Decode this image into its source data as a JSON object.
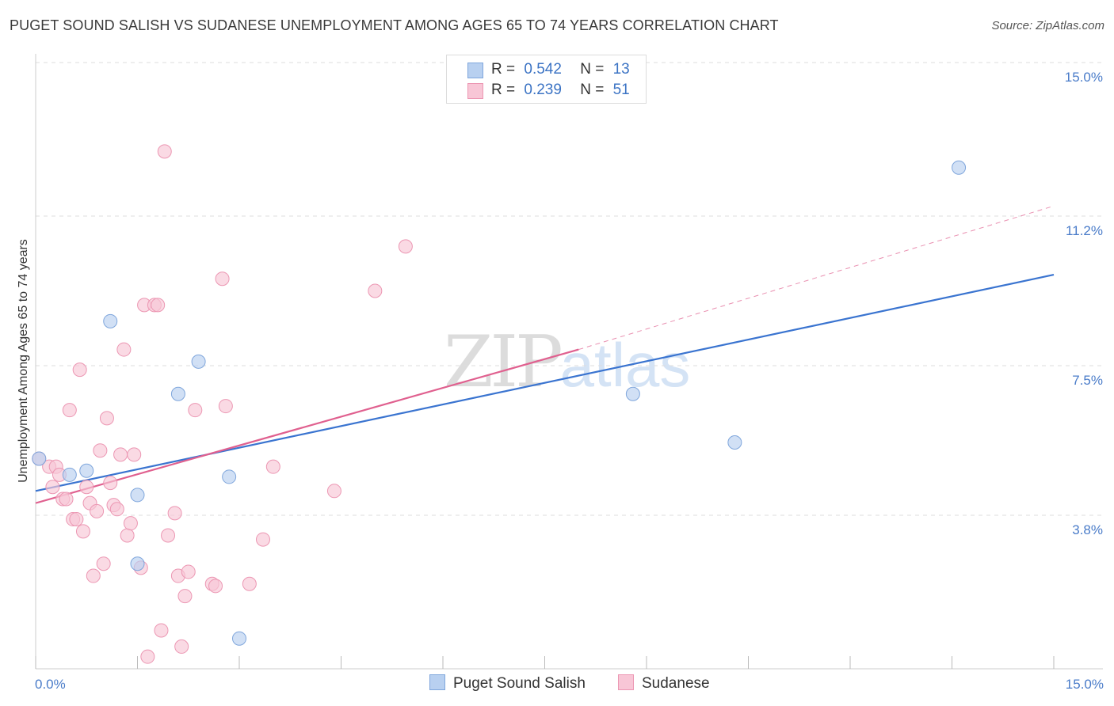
{
  "title": "PUGET SOUND SALISH VS SUDANESE UNEMPLOYMENT AMONG AGES 65 TO 74 YEARS CORRELATION CHART",
  "source": "Source: ZipAtlas.com",
  "watermark": {
    "zip": "ZIP",
    "atlas": "atlas"
  },
  "legend": {
    "r_label": "R =",
    "n_label": "N =",
    "rows": [
      {
        "r": "0.542",
        "n": "13"
      },
      {
        "r": "0.239",
        "n": "51"
      }
    ]
  },
  "colors": {
    "blue_fill": "#b8d0f0",
    "blue_stroke": "#7fa6dc",
    "blue_line": "#3a74d0",
    "pink_fill": "#f8c6d6",
    "pink_stroke": "#ec97b3",
    "pink_line": "#e0608f",
    "tick_text": "#4a7cc9",
    "grid": "#dedede"
  },
  "chart_data": {
    "type": "scatter",
    "xlabel": "",
    "ylabel": "Unemployment Among Ages 65 to 74 years",
    "xlim": [
      0,
      15
    ],
    "ylim": [
      0,
      15
    ],
    "x_tick_labels": [
      "0.0%",
      "15.0%"
    ],
    "y_ticks": [
      3.8,
      7.5,
      11.2,
      15.0
    ],
    "y_tick_labels": [
      "3.8%",
      "7.5%",
      "11.2%",
      "15.0%"
    ],
    "grid": "horizontal dashed",
    "series": [
      {
        "name": "Puget Sound Salish",
        "points": [
          [
            0.05,
            5.2
          ],
          [
            0.5,
            4.8
          ],
          [
            0.75,
            4.9
          ],
          [
            1.1,
            8.6
          ],
          [
            1.5,
            4.3
          ],
          [
            1.5,
            2.6
          ],
          [
            2.1,
            6.8
          ],
          [
            2.4,
            7.6
          ],
          [
            2.85,
            4.75
          ],
          [
            3.0,
            0.75
          ],
          [
            8.8,
            6.8
          ],
          [
            10.3,
            5.6
          ],
          [
            13.6,
            12.4
          ]
        ],
        "trend": {
          "x": [
            0,
            15
          ],
          "y": [
            4.4,
            9.75
          ]
        }
      },
      {
        "name": "Sudanese",
        "points": [
          [
            0.05,
            5.2
          ],
          [
            0.2,
            5.0
          ],
          [
            0.25,
            4.5
          ],
          [
            0.3,
            5.0
          ],
          [
            0.35,
            4.8
          ],
          [
            0.4,
            4.2
          ],
          [
            0.45,
            4.2
          ],
          [
            0.5,
            6.4
          ],
          [
            0.55,
            3.7
          ],
          [
            0.6,
            3.7
          ],
          [
            0.65,
            7.4
          ],
          [
            0.7,
            3.4
          ],
          [
            0.75,
            4.5
          ],
          [
            0.8,
            4.1
          ],
          [
            0.85,
            2.3
          ],
          [
            0.9,
            3.9
          ],
          [
            0.95,
            5.4
          ],
          [
            1.0,
            2.6
          ],
          [
            1.05,
            6.2
          ],
          [
            1.1,
            4.6
          ],
          [
            1.15,
            4.05
          ],
          [
            1.25,
            5.3
          ],
          [
            1.3,
            7.9
          ],
          [
            1.35,
            3.3
          ],
          [
            1.4,
            3.6
          ],
          [
            1.45,
            5.3
          ],
          [
            1.55,
            2.5
          ],
          [
            1.6,
            9.0
          ],
          [
            1.65,
            0.3
          ],
          [
            1.75,
            9.0
          ],
          [
            1.8,
            9.0
          ],
          [
            1.85,
            0.95
          ],
          [
            1.9,
            12.8
          ],
          [
            1.95,
            3.3
          ],
          [
            2.05,
            3.85
          ],
          [
            2.1,
            2.3
          ],
          [
            2.15,
            0.55
          ],
          [
            2.2,
            1.8
          ],
          [
            2.25,
            2.4
          ],
          [
            2.35,
            6.4
          ],
          [
            2.6,
            2.1
          ],
          [
            2.75,
            9.65
          ],
          [
            2.8,
            6.5
          ],
          [
            3.15,
            2.1
          ],
          [
            3.35,
            3.2
          ],
          [
            3.5,
            5.0
          ],
          [
            4.4,
            4.4
          ],
          [
            5.0,
            9.35
          ],
          [
            5.45,
            10.45
          ],
          [
            1.2,
            3.95
          ],
          [
            2.65,
            2.05
          ]
        ],
        "trend": {
          "x": [
            0,
            8.0
          ],
          "y": [
            4.1,
            7.9
          ]
        },
        "trend_extension": {
          "x": [
            8.0,
            15.0
          ],
          "y": [
            7.9,
            11.45
          ]
        }
      }
    ]
  }
}
